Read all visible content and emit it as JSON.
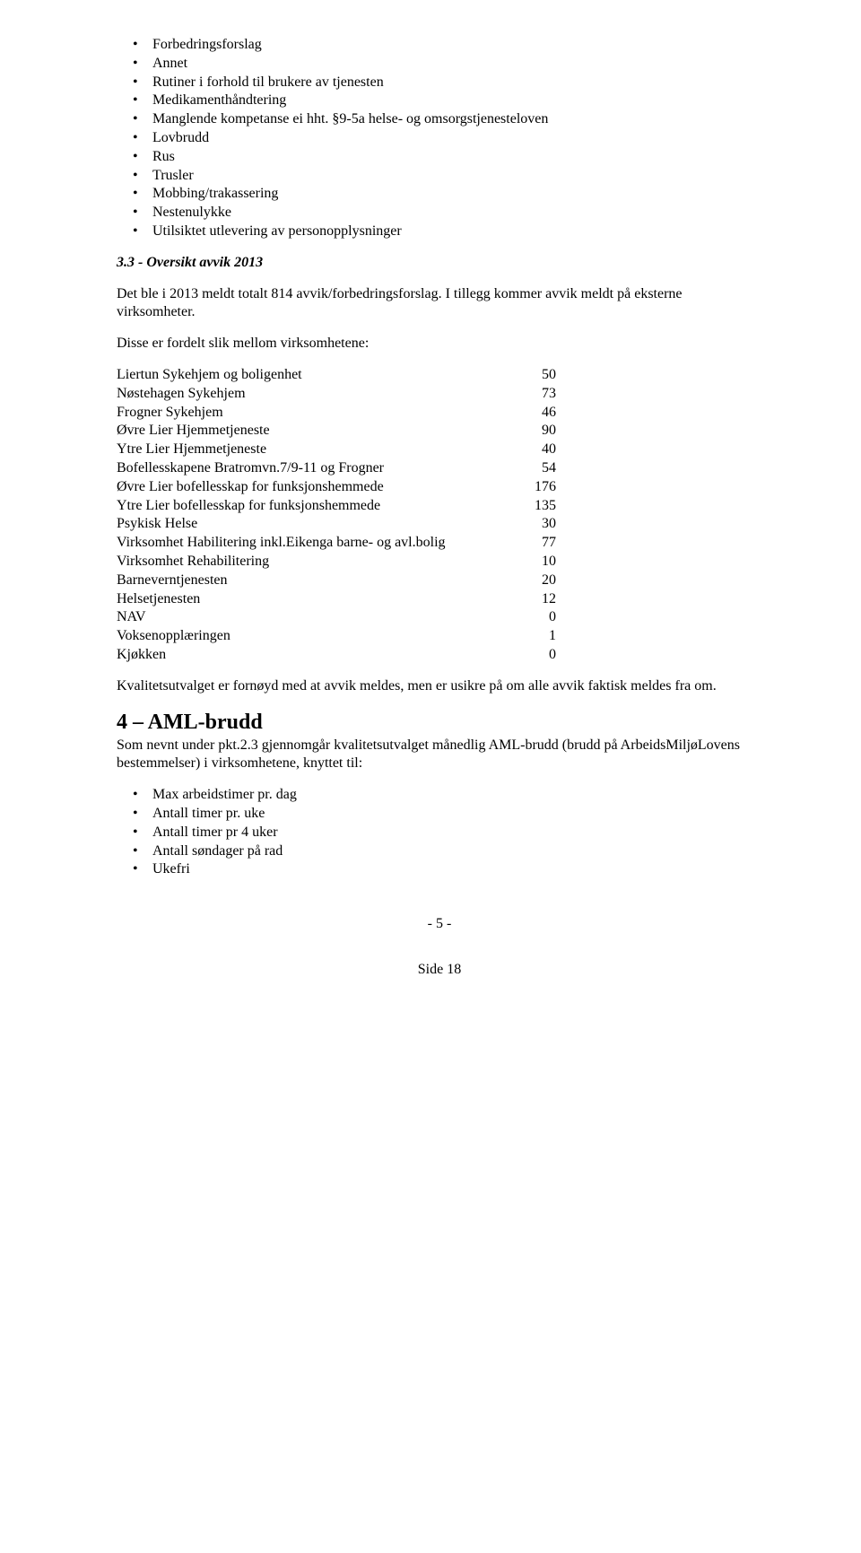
{
  "bullets_top": [
    "Forbedringsforslag",
    "Annet",
    "Rutiner i forhold til brukere av tjenesten",
    "Medikamenthåndtering",
    "Manglende kompetanse ei hht. §9-5a helse- og omsorgstjenesteloven",
    "Lovbrudd",
    "Rus",
    "Trusler",
    "Mobbing/trakassering",
    "Nestenulykke",
    "Utilsiktet utlevering av personopplysninger"
  ],
  "section33_heading": "3.3 - Oversikt avvik 2013",
  "para1": "Det ble i 2013 meldt totalt 814 avvik/forbedringsforslag. I tillegg kommer avvik meldt på eksterne virksomheter.",
  "para2": "Disse er fordelt slik mellom virksomhetene:",
  "table_rows": [
    {
      "label": "Liertun Sykehjem og boligenhet",
      "value": "50"
    },
    {
      "label": "Nøstehagen Sykehjem",
      "value": "73"
    },
    {
      "label": "Frogner Sykehjem",
      "value": "46"
    },
    {
      "label": "Øvre Lier Hjemmetjeneste",
      "value": "90"
    },
    {
      "label": "Ytre Lier Hjemmetjeneste",
      "value": "40"
    },
    {
      "label": "Bofellesskapene Bratromvn.7/9-11 og Frogner",
      "value": "54"
    },
    {
      "label": "Øvre Lier bofellesskap for funksjonshemmede",
      "value": "176"
    },
    {
      "label": "Ytre Lier bofellesskap for funksjonshemmede",
      "value": "135"
    },
    {
      "label": "Psykisk Helse",
      "value": "30"
    },
    {
      "label": "Virksomhet Habilitering inkl.Eikenga barne- og avl.bolig",
      "value": "77"
    },
    {
      "label": "Virksomhet Rehabilitering",
      "value": "10"
    },
    {
      "label": "Barneverntjenesten",
      "value": "20"
    },
    {
      "label": "Helsetjenesten",
      "value": "12"
    },
    {
      "label": "NAV",
      "value": "0"
    },
    {
      "label": "Voksenopplæringen",
      "value": "1"
    },
    {
      "label": "Kjøkken",
      "value": "0"
    }
  ],
  "para3": "Kvalitetsutvalget er fornøyd med at avvik meldes, men er usikre på om alle avvik faktisk meldes fra om.",
  "section4_heading": "4 – AML-brudd",
  "para4": "Som nevnt under pkt.2.3 gjennomgår kvalitetsutvalget månedlig AML-brudd (brudd på ArbeidsMiljøLovens bestemmelser) i virksomhetene, knyttet til:",
  "bullets_bottom": [
    "Max arbeidstimer pr. dag",
    "Antall timer pr. uke",
    "Antall timer pr 4 uker",
    "Antall søndager på rad",
    "Ukefri"
  ],
  "footer_line1": "- 5 -",
  "footer_line2": "Side 18"
}
